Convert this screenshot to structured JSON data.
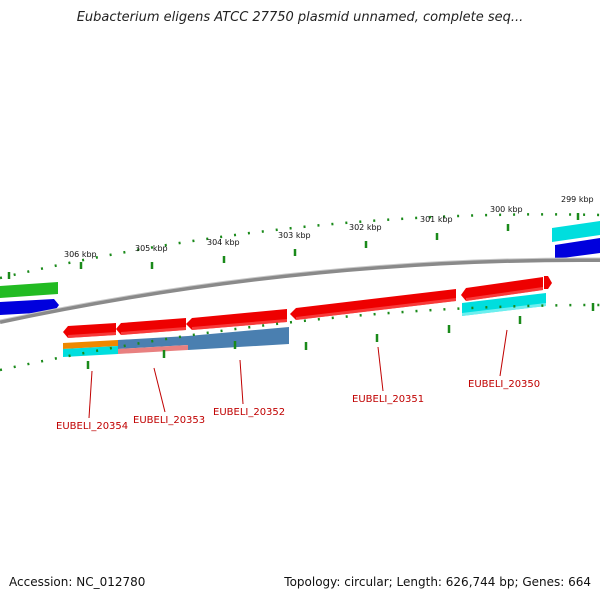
{
  "title": "Eubacterium eligens ATCC 27750 plasmid unnamed, complete seq...",
  "footer": {
    "accession": "Accession: NC_012780",
    "summary": "Topology: circular; Length: 626,744 bp; Genes: 664"
  },
  "colors": {
    "tick": "#1a8a1a",
    "backbone": "#8a8a8a",
    "label": "#c00000",
    "gene_red": "#ee0000",
    "gene_blue": "#0000dd",
    "gene_green": "#22bb22",
    "gene_cyan": "#00dede",
    "gene_steel": "#4a7fb0",
    "gene_salmon": "#e88080",
    "gene_orange": "#ee8800"
  },
  "kbp_labels": [
    "306 kbp",
    "305 kbp",
    "304 kbp",
    "303 kbp",
    "302 kbp",
    "301 kbp",
    "300 kbp",
    "299 kbp"
  ],
  "gene_labels": [
    "EUBELI_20354",
    "EUBELI_20353",
    "EUBELI_20352",
    "EUBELI_20351",
    "EUBELI_20350"
  ]
}
